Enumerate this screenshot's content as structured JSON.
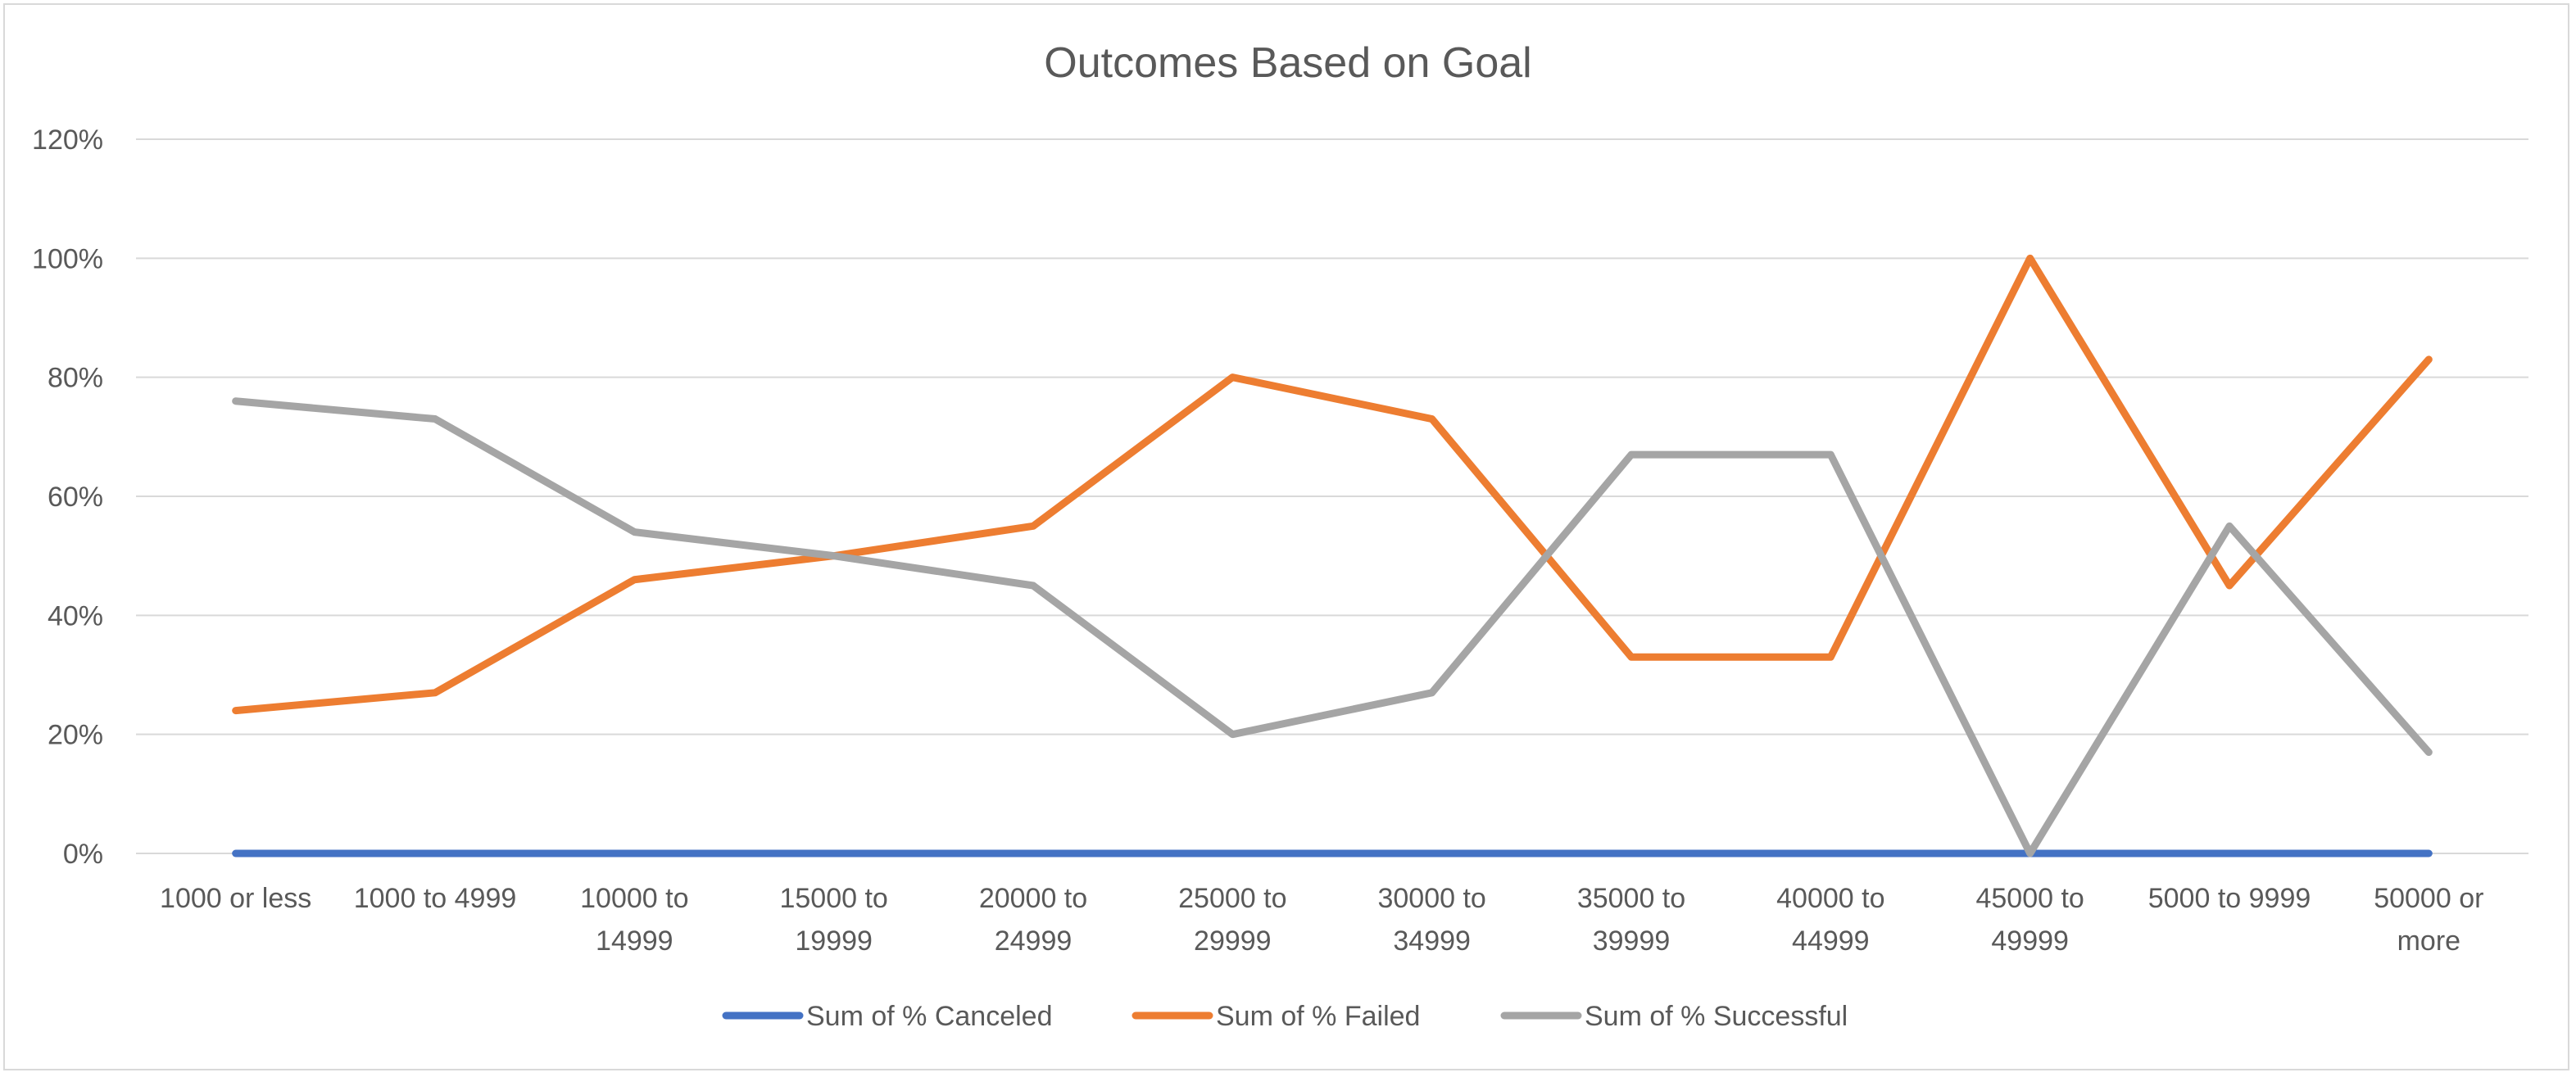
{
  "chart_data": {
    "type": "line",
    "title": "Outcomes Based on Goal",
    "categories": [
      [
        "1000 or less"
      ],
      [
        "1000 to 4999"
      ],
      [
        "10000 to",
        "14999"
      ],
      [
        "15000 to",
        "19999"
      ],
      [
        "20000 to",
        "24999"
      ],
      [
        "25000 to",
        "29999"
      ],
      [
        "30000 to",
        "34999"
      ],
      [
        "35000 to",
        "39999"
      ],
      [
        "40000 to",
        "44999"
      ],
      [
        "45000 to",
        "49999"
      ],
      [
        "5000 to 9999"
      ],
      [
        "50000 or",
        "more"
      ]
    ],
    "ylim": [
      0,
      1.2
    ],
    "yticks": [
      0,
      0.2,
      0.4,
      0.6,
      0.8,
      1.0,
      1.2
    ],
    "ytick_labels": [
      "0%",
      "20%",
      "40%",
      "60%",
      "80%",
      "100%",
      "120%"
    ],
    "grid": true,
    "legend_position": "bottom",
    "series": [
      {
        "name": "Sum of % Canceled",
        "color": "#4472C4",
        "values": [
          0,
          0,
          0,
          0,
          0,
          0,
          0,
          0,
          0,
          0,
          0,
          0
        ]
      },
      {
        "name": "Sum of % Failed",
        "color": "#ED7D31",
        "values": [
          0.24,
          0.27,
          0.46,
          0.5,
          0.55,
          0.8,
          0.73,
          0.33,
          0.33,
          1.0,
          0.45,
          0.83
        ]
      },
      {
        "name": "Sum of % Successful",
        "color": "#A5A5A5",
        "values": [
          0.76,
          0.73,
          0.54,
          0.5,
          0.45,
          0.2,
          0.27,
          0.67,
          0.67,
          0.0,
          0.55,
          0.17
        ]
      }
    ]
  }
}
